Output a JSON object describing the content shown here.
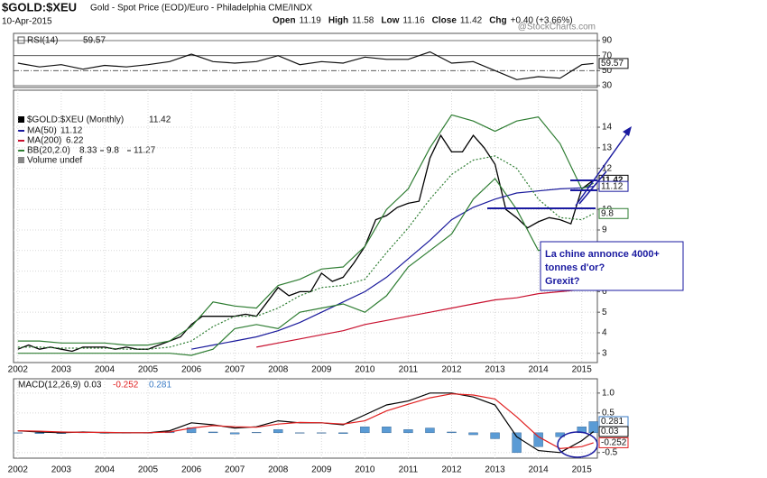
{
  "header": {
    "symbol": "$GOLD:$XEU",
    "description": "Gold - Spot Price (EOD)/Euro - Philadelphia CME/INDX",
    "date": "10-Apr-2015",
    "ohlc": [
      {
        "label": "Open",
        "value": 11.19
      },
      {
        "label": "High",
        "value": 11.58
      },
      {
        "label": "Low",
        "value": 11.16
      },
      {
        "label": "Close",
        "value": 11.42
      },
      {
        "label": "Chg",
        "value": "+0.40 (+3.66%)"
      }
    ],
    "watermark": "@StockCharts.com"
  },
  "chart_data": [
    {
      "type": "line",
      "title": "RSI(14)",
      "x": [
        2002,
        2002.5,
        2003,
        2003.5,
        2004,
        2004.5,
        2005,
        2005.5,
        2006,
        2006.5,
        2007,
        2007.5,
        2008,
        2008.5,
        2009,
        2009.5,
        2010,
        2010.5,
        2011,
        2011.5,
        2012,
        2012.5,
        2013,
        2013.5,
        2014,
        2014.5,
        2015,
        2015.27
      ],
      "xlim": [
        2001.9,
        2015.36
      ],
      "ylim": [
        27.6,
        99.6
      ],
      "yticks": [
        30,
        50,
        70,
        90
      ],
      "grid": false,
      "series": [
        {
          "name": "RSI(14)",
          "color": "#111111",
          "tag": true,
          "values": [
            60,
            55,
            58,
            52,
            57,
            55,
            58,
            62,
            72,
            62,
            60,
            62,
            70,
            58,
            62,
            60,
            68,
            65,
            65,
            75,
            60,
            62,
            50,
            38,
            42,
            40,
            58,
            59.57
          ]
        }
      ]
    },
    {
      "type": "line",
      "title": "$GOLD:$XEU (Monthly)",
      "x": [
        2002,
        2002.5,
        2003,
        2003.5,
        2004,
        2004.5,
        2005,
        2005.5,
        2006,
        2006.5,
        2007,
        2007.5,
        2008,
        2008.5,
        2009,
        2009.5,
        2010,
        2010.5,
        2011,
        2011.5,
        2012,
        2012.5,
        2013,
        2013.5,
        2014,
        2014.5,
        2015,
        2015.27
      ],
      "xlim": [
        2001.9,
        2015.36
      ],
      "xticks": [
        2002,
        2003,
        2004,
        2005,
        2006,
        2007,
        2008,
        2009,
        2010,
        2011,
        2012,
        2013,
        2014,
        2015
      ],
      "ylim": [
        2.55,
        15.8
      ],
      "yticks": [
        3,
        4,
        5,
        6,
        7,
        8,
        9,
        10,
        11,
        12,
        13,
        14
      ],
      "grid": true,
      "annotations": [
        "Volume undef",
        "La chine annonce 4000+",
        "tonnes d'or?",
        "Grexit?"
      ],
      "series": [
        {
          "name": "$GOLD:$XEU (Monthly)",
          "color": "#000000",
          "tag": true,
          "x": [
            2002,
            2002.25,
            2002.5,
            2002.75,
            2003,
            2003.25,
            2003.5,
            2003.75,
            2004,
            2004.25,
            2004.5,
            2004.75,
            2005,
            2005.25,
            2005.5,
            2005.75,
            2006,
            2006.25,
            2006.5,
            2006.75,
            2007,
            2007.25,
            2007.5,
            2007.75,
            2008,
            2008.25,
            2008.5,
            2008.75,
            2009,
            2009.25,
            2009.5,
            2009.75,
            2010,
            2010.25,
            2010.5,
            2010.75,
            2011,
            2011.25,
            2011.5,
            2011.75,
            2012,
            2012.25,
            2012.5,
            2012.75,
            2013,
            2013.25,
            2013.5,
            2013.75,
            2014,
            2014.25,
            2014.5,
            2014.75,
            2015,
            2015.27
          ],
          "values": [
            3.2,
            3.4,
            3.2,
            3.3,
            3.2,
            3.1,
            3.3,
            3.3,
            3.3,
            3.2,
            3.3,
            3.2,
            3.2,
            3.4,
            3.6,
            3.8,
            4.4,
            4.8,
            4.8,
            4.8,
            4.8,
            4.9,
            4.8,
            5.5,
            6.2,
            5.8,
            6.0,
            6.0,
            6.9,
            6.5,
            6.7,
            7.4,
            8.2,
            9.5,
            9.7,
            10.1,
            10.3,
            10.4,
            12.5,
            13.6,
            12.8,
            12.8,
            13.6,
            13.0,
            12.2,
            10.0,
            9.6,
            9.1,
            9.4,
            9.6,
            9.5,
            9.3,
            11.0,
            11.42
          ]
        },
        {
          "name": "MA(50)",
          "color": "#1a1a9c",
          "tag": true,
          "values": [
            null,
            null,
            null,
            null,
            null,
            null,
            null,
            null,
            3.2,
            3.4,
            3.6,
            3.8,
            4.1,
            4.5,
            5.0,
            5.5,
            6.0,
            6.7,
            7.6,
            8.5,
            9.5,
            10.1,
            10.5,
            10.8,
            10.9,
            11.0,
            11.05,
            11.12
          ]
        },
        {
          "name": "MA(200)",
          "color": "#c8102e",
          "values": [
            null,
            null,
            null,
            null,
            null,
            null,
            null,
            null,
            null,
            null,
            null,
            3.3,
            3.5,
            3.7,
            3.9,
            4.1,
            4.4,
            4.6,
            4.8,
            5.0,
            5.2,
            5.4,
            5.6,
            5.7,
            5.9,
            6.0,
            6.1,
            6.22
          ]
        },
        {
          "name": "BB(20,2.0)",
          "color": "#2e7d32",
          "values": [
            3.0,
            3.0,
            3.0,
            3.0,
            3.0,
            3.0,
            3.0,
            3.0,
            2.9,
            3.2,
            4.2,
            4.4,
            4.2,
            5.0,
            5.2,
            5.4,
            5.0,
            5.8,
            7.2,
            8.0,
            8.8,
            10.5,
            11.5,
            10.0,
            8.0,
            8.3,
            8.0,
            8.33
          ]
        },
        {
          "color": "#2e7d32",
          "style": "dotted",
          "tag": true,
          "values": [
            3.3,
            3.3,
            3.25,
            3.25,
            3.25,
            3.2,
            3.2,
            3.3,
            3.6,
            4.3,
            4.8,
            4.8,
            5.2,
            5.8,
            6.2,
            6.3,
            6.6,
            7.9,
            9.1,
            10.5,
            11.7,
            12.4,
            12.6,
            12.0,
            10.5,
            9.6,
            9.5,
            9.8
          ]
        },
        {
          "color": "#2e7d32",
          "values": [
            3.6,
            3.6,
            3.5,
            3.5,
            3.5,
            3.4,
            3.4,
            3.6,
            4.3,
            5.5,
            5.3,
            5.2,
            6.3,
            6.6,
            7.1,
            7.2,
            8.2,
            10.0,
            11.0,
            13.0,
            14.6,
            14.3,
            13.8,
            14.3,
            14.5,
            13.2,
            11.0,
            11.27
          ]
        }
      ]
    },
    {
      "type": "line",
      "title": "MACD(12,26,9)",
      "x": [
        2002,
        2002.5,
        2003,
        2003.5,
        2004,
        2004.5,
        2005,
        2005.5,
        2006,
        2006.5,
        2007,
        2007.5,
        2008,
        2008.5,
        2009,
        2009.5,
        2010,
        2010.5,
        2011,
        2011.5,
        2012,
        2012.5,
        2013,
        2013.5,
        2014,
        2014.5,
        2015,
        2015.27
      ],
      "xlim": [
        2001.9,
        2015.36
      ],
      "xticks": [
        2002,
        2003,
        2004,
        2005,
        2006,
        2007,
        2008,
        2009,
        2010,
        2011,
        2012,
        2013,
        2014,
        2015
      ],
      "ylim": [
        -0.64,
        1.36
      ],
      "yticks": [
        {
          "value": -0.5,
          "label": "-0.5"
        },
        {
          "value": 0.5,
          "label": "0.5"
        },
        {
          "value": 1.0,
          "label": "1.0"
        }
      ],
      "grid": true,
      "series": [
        {
          "type": "bar",
          "color": "#5a9bd5",
          "tag": true,
          "values": [
            0,
            -0.02,
            -0.02,
            0.01,
            -0.01,
            0,
            0,
            0.03,
            0.13,
            0.02,
            -0.03,
            0.01,
            0.08,
            -0.01,
            0,
            -0.02,
            0.15,
            0.15,
            0.08,
            0.12,
            0.02,
            -0.05,
            -0.15,
            -0.5,
            -0.35,
            -0.1,
            0.15,
            0.281
          ]
        },
        {
          "color": "#000000",
          "tag": true,
          "values": [
            0.05,
            0.02,
            0.0,
            0.02,
            0.0,
            0.0,
            0.0,
            0.05,
            0.25,
            0.2,
            0.12,
            0.15,
            0.3,
            0.25,
            0.25,
            0.2,
            0.45,
            0.7,
            0.8,
            1.0,
            1.0,
            0.9,
            0.7,
            -0.1,
            -0.45,
            -0.5,
            -0.2,
            0.03
          ]
        },
        {
          "color": "#e02020",
          "tag": true,
          "values": [
            0.05,
            0.04,
            0.02,
            0.01,
            0.01,
            0.0,
            0.0,
            0.02,
            0.12,
            0.18,
            0.15,
            0.14,
            0.22,
            0.26,
            0.25,
            0.22,
            0.3,
            0.55,
            0.72,
            0.88,
            0.98,
            0.95,
            0.85,
            0.4,
            -0.1,
            -0.4,
            -0.35,
            -0.252
          ]
        }
      ]
    }
  ]
}
